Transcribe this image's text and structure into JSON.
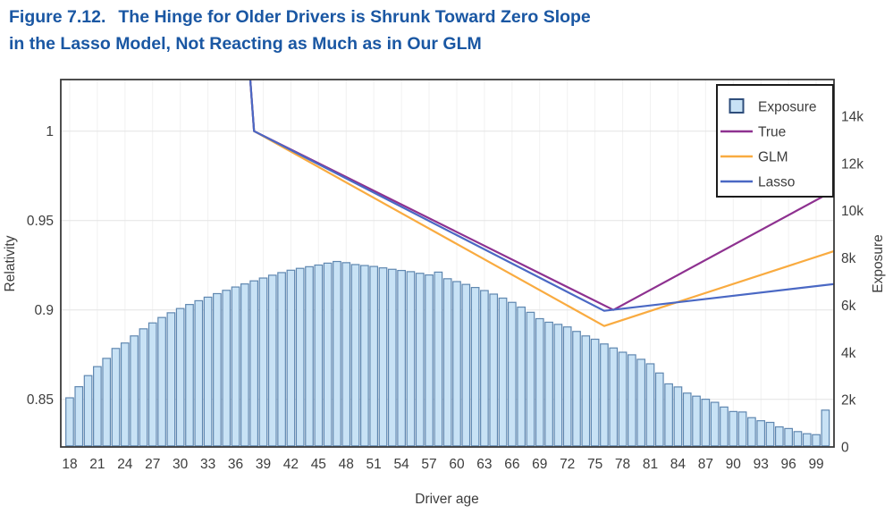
{
  "title": {
    "figure_label": "Figure 7.12.",
    "line1": "The Hinge for Older Drivers is Shrunk Toward Zero Slope",
    "line2": "in the Lasso Model, Not Reacting as Much as in Our GLM"
  },
  "colors": {
    "title_blue": "#1a57a3",
    "bar_fill": "#c8e2f5",
    "bar_stroke": "#5f87b0",
    "legend_swatch_stroke": "#2e4d7b",
    "true_line": "#8e3190",
    "glm_line": "#f9ab40",
    "lasso_line": "#4a68c4",
    "grid_h": "#e4e4e4",
    "grid_v": "#f1f1f1",
    "frame": "#3a3a3a",
    "tick_text": "#3d3d3d",
    "legend_border": "#1c1c1c"
  },
  "chart_data": {
    "type": "bar+line",
    "xlabel": "Driver age",
    "ylabel_left": "Relativity",
    "ylabel_right": "Exposure",
    "x_ticks": [
      18,
      21,
      24,
      27,
      30,
      33,
      36,
      39,
      42,
      45,
      48,
      51,
      54,
      57,
      60,
      63,
      66,
      69,
      72,
      75,
      78,
      81,
      84,
      87,
      90,
      93,
      96,
      99
    ],
    "left_axis": {
      "ticks": [
        1,
        0.95,
        0.9,
        0.85
      ],
      "labels": [
        "1",
        "0.95",
        "0.9",
        "0.85"
      ],
      "range": [
        0.8235,
        1.0289
      ],
      "grid": true
    },
    "right_axis": {
      "ticks": [
        0,
        2000,
        4000,
        6000,
        8000,
        10000,
        12000,
        14000
      ],
      "labels": [
        "0",
        "2k",
        "4k",
        "6k",
        "8k",
        "10k",
        "12k",
        "14k"
      ],
      "range": [
        0,
        15550
      ]
    },
    "bars": {
      "name": "Exposure",
      "age_start": 18,
      "age_end": 100,
      "values": [
        2080,
        2550,
        3020,
        3400,
        3750,
        4170,
        4400,
        4700,
        5000,
        5250,
        5480,
        5680,
        5860,
        6030,
        6190,
        6340,
        6490,
        6630,
        6770,
        6900,
        7030,
        7150,
        7270,
        7380,
        7480,
        7560,
        7630,
        7700,
        7780,
        7850,
        7800,
        7720,
        7680,
        7640,
        7580,
        7520,
        7470,
        7420,
        7350,
        7280,
        7400,
        7120,
        7000,
        6880,
        6750,
        6620,
        6470,
        6300,
        6120,
        5920,
        5700,
        5430,
        5280,
        5190,
        5080,
        4890,
        4700,
        4560,
        4360,
        4190,
        4010,
        3900,
        3710,
        3520,
        3130,
        2670,
        2540,
        2280,
        2150,
        2020,
        1890,
        1690,
        1500,
        1480,
        1240,
        1110,
        1040,
        850,
        780,
        650,
        560,
        520,
        1560
      ]
    },
    "series": [
      {
        "name": "True",
        "color": "#8e3190",
        "points": [
          [
            37.58,
            1.03
          ],
          [
            38,
            1.0
          ],
          [
            77,
            0.9
          ],
          [
            101,
            0.967
          ]
        ]
      },
      {
        "name": "GLM",
        "color": "#f9ab40",
        "points": [
          [
            37.58,
            1.03
          ],
          [
            38,
            1.0
          ],
          [
            76,
            0.891
          ],
          [
            101,
            0.933
          ]
        ]
      },
      {
        "name": "Lasso",
        "color": "#4a68c4",
        "points": [
          [
            37.58,
            1.03
          ],
          [
            38,
            1.0
          ],
          [
            76,
            0.8995
          ],
          [
            101,
            0.9145
          ]
        ]
      }
    ],
    "legend": {
      "position": "top-right",
      "items": [
        "Exposure",
        "True",
        "GLM",
        "Lasso"
      ]
    }
  }
}
